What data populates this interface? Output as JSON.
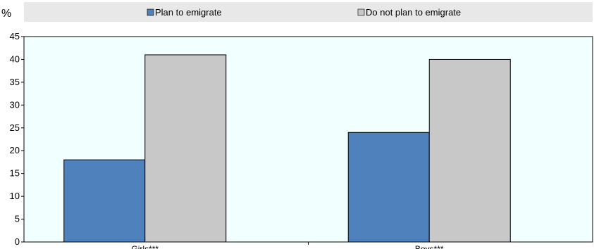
{
  "chart_data": {
    "type": "bar",
    "unit_label": "%",
    "categories": [
      "Girls***",
      "Boys***"
    ],
    "series": [
      {
        "name": "Plan to emigrate",
        "values": [
          18,
          24
        ],
        "color": "#4f81bd"
      },
      {
        "name": "Do not plan to emigrate",
        "values": [
          41,
          40
        ],
        "color": "#c8c8c8"
      }
    ],
    "ylim": [
      0,
      45
    ],
    "yticks": [
      0,
      5,
      10,
      15,
      20,
      25,
      30,
      35,
      40,
      45
    ],
    "grid": false,
    "legend_position": "top",
    "plot_background": "#f2ffff",
    "legend_background": "#e8e8e8"
  }
}
